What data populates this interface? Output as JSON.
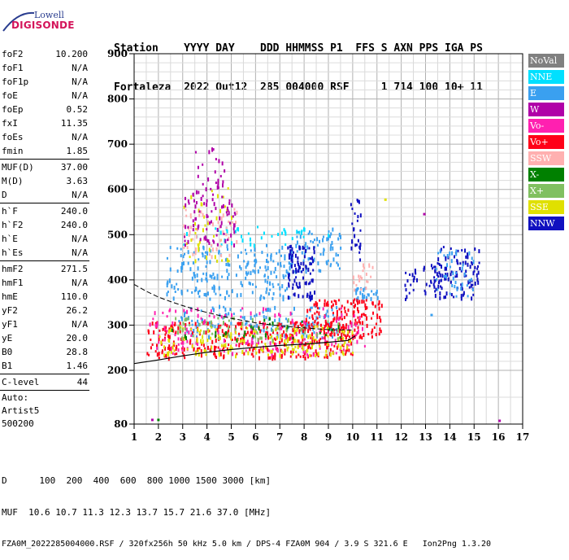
{
  "logo": {
    "line1": "Lowell",
    "line2": "DIGISONDE"
  },
  "header": {
    "row1": "Station    YYYY DAY    DDD HHMMSS P1  FFS S AXN PPS IGA PS",
    "row2": "Fortaleza  2022 Out12  285 004000 RSF     1 714 100 10+ 11"
  },
  "params": [
    {
      "name": "foF2",
      "value": "10.200"
    },
    {
      "name": "foF1",
      "value": "N/A"
    },
    {
      "name": "foF1p",
      "value": "N/A"
    },
    {
      "name": "foE",
      "value": "N/A"
    },
    {
      "name": "foEp",
      "value": "0.52"
    },
    {
      "name": "fxI",
      "value": "11.35"
    },
    {
      "name": "foEs",
      "value": "N/A"
    },
    {
      "name": "fmin",
      "value": "1.85"
    },
    {
      "sep": true
    },
    {
      "name": "MUF(D)",
      "value": "37.00"
    },
    {
      "name": "M(D)",
      "value": "3.63"
    },
    {
      "name": "D",
      "value": "N/A"
    },
    {
      "sep": true
    },
    {
      "name": "h`F",
      "value": "240.0"
    },
    {
      "name": "h`F2",
      "value": "240.0"
    },
    {
      "name": "h`E",
      "value": "N/A"
    },
    {
      "name": "h`Es",
      "value": "N/A"
    },
    {
      "sep": true
    },
    {
      "name": "hmF2",
      "value": "271.5"
    },
    {
      "name": "hmF1",
      "value": "N/A"
    },
    {
      "name": "hmE",
      "value": "110.0"
    },
    {
      "name": "yF2",
      "value": "26.2"
    },
    {
      "name": "yF1",
      "value": "N/A"
    },
    {
      "name": "yE",
      "value": "20.0"
    },
    {
      "name": "B0",
      "value": "28.8"
    },
    {
      "name": "B1",
      "value": "1.46"
    },
    {
      "sep": true
    },
    {
      "name": "C-level",
      "value": "44"
    },
    {
      "sep": true
    },
    {
      "text": "Auto:"
    },
    {
      "text": "Artist5"
    },
    {
      "text": "500200"
    }
  ],
  "legend": [
    {
      "label": "NoVal",
      "color": "#808080"
    },
    {
      "label": "NNE",
      "color": "#00e0ff"
    },
    {
      "label": "E",
      "color": "#3aa0f0"
    },
    {
      "label": "W",
      "color": "#b000a8"
    },
    {
      "label": "Vo-",
      "color": "#ff20b0"
    },
    {
      "label": "Vo+",
      "color": "#ff0018"
    },
    {
      "label": "SSW",
      "color": "#ffb0b0"
    },
    {
      "label": "X-",
      "color": "#008000"
    },
    {
      "label": "X+",
      "color": "#80c060"
    },
    {
      "label": "SSE",
      "color": "#e0e000"
    },
    {
      "label": "NNW",
      "color": "#1010c0"
    }
  ],
  "footer": {
    "line1": "D      100  200  400  600  800 1000 1500 3000 [km]",
    "line2": "MUF  10.6 10.7 11.3 12.3 13.7 15.7 21.6 37.0 [MHz]",
    "line3": "FZA0M_2022285004000.RSF / 320fx256h 50 kHz 5.0 km / DPS-4 FZA0M 904 / 3.9 S 321.6 E   Ion2Png 1.3.20"
  },
  "chart_data": {
    "type": "scatter",
    "xlim": [
      1,
      17
    ],
    "ylim": [
      80,
      900
    ],
    "xticks": [
      "1",
      "2",
      "3",
      "4",
      "5",
      "6",
      "7",
      "8",
      "9",
      "10",
      "11",
      "12",
      "13",
      "14",
      "15",
      "16",
      "17"
    ],
    "yticks": [
      "80",
      "200",
      "300",
      "400",
      "500",
      "600",
      "700",
      "800",
      "900"
    ],
    "grid": true,
    "trace_upper": [
      [
        1,
        390
      ],
      [
        1.5,
        375
      ],
      [
        2,
        362
      ],
      [
        2.5,
        352
      ],
      [
        3,
        343
      ],
      [
        3.5,
        335
      ],
      [
        4,
        328
      ],
      [
        5,
        315
      ],
      [
        6,
        305
      ],
      [
        7,
        298
      ],
      [
        8,
        294
      ],
      [
        9,
        290
      ],
      [
        10,
        289
      ]
    ],
    "trace_lower": [
      [
        1,
        215
      ],
      [
        2,
        223
      ],
      [
        3,
        232
      ],
      [
        4,
        240
      ],
      [
        5,
        246
      ],
      [
        6,
        251
      ],
      [
        7,
        255
      ],
      [
        8,
        258
      ],
      [
        9,
        262
      ],
      [
        9.8,
        266
      ],
      [
        10.1,
        276
      ]
    ],
    "clusters": [
      {
        "color": "#3aa0f0",
        "x": [
          2.3,
          7.5
        ],
        "y": [
          360,
          480
        ],
        "n": 220
      },
      {
        "color": "#3aa0f0",
        "x": [
          7.6,
          9.6
        ],
        "y": [
          420,
          520
        ],
        "n": 70
      },
      {
        "color": "#3aa0f0",
        "x": [
          2.8,
          9.5
        ],
        "y": [
          275,
          345
        ],
        "n": 140
      },
      {
        "color": "#3aa0f0",
        "x": [
          10.0,
          11.0
        ],
        "y": [
          360,
          385
        ],
        "n": 25
      },
      {
        "color": "#00e0ff",
        "x": [
          3.0,
          9.0
        ],
        "y": [
          480,
          520
        ],
        "n": 40
      },
      {
        "color": "#ff0018",
        "x": [
          1.5,
          10.0
        ],
        "y": [
          230,
          310
        ],
        "n": 360
      },
      {
        "color": "#ff0018",
        "x": [
          8.0,
          11.2
        ],
        "y": [
          275,
          360
        ],
        "n": 150
      },
      {
        "color": "#ff20b0",
        "x": [
          1.6,
          10.5
        ],
        "y": [
          235,
          340
        ],
        "n": 160
      },
      {
        "color": "#e0e000",
        "x": [
          2.0,
          10.0
        ],
        "y": [
          235,
          300
        ],
        "n": 170
      },
      {
        "color": "#e0e000",
        "x": [
          3.0,
          5.0
        ],
        "y": [
          440,
          620
        ],
        "n": 40
      },
      {
        "color": "#ffb0b0",
        "x": [
          3.0,
          5.2
        ],
        "y": [
          450,
          560
        ],
        "n": 50
      },
      {
        "color": "#ffb0b0",
        "x": [
          10.0,
          11.0
        ],
        "y": [
          380,
          440
        ],
        "n": 20
      },
      {
        "color": "#b000a8",
        "x": [
          3.0,
          5.2
        ],
        "y": [
          480,
          600
        ],
        "n": 80
      },
      {
        "color": "#b000a8",
        "x": [
          3.5,
          4.7
        ],
        "y": [
          600,
          700
        ],
        "n": 25
      },
      {
        "color": "#1010c0",
        "x": [
          7.3,
          8.4
        ],
        "y": [
          360,
          480
        ],
        "n": 90
      },
      {
        "color": "#1010c0",
        "x": [
          13.3,
          15.2
        ],
        "y": [
          360,
          480
        ],
        "n": 110
      },
      {
        "color": "#1010c0",
        "x": [
          12.1,
          13.4
        ],
        "y": [
          360,
          440
        ],
        "n": 30
      },
      {
        "color": "#1010c0",
        "x": [
          9.9,
          10.3
        ],
        "y": [
          440,
          580
        ],
        "n": 25
      },
      {
        "color": "#80c060",
        "x": [
          2.5,
          9.5
        ],
        "y": [
          270,
          320
        ],
        "n": 60
      },
      {
        "color": "#008000",
        "x": [
          2.5,
          9.5
        ],
        "y": [
          270,
          320
        ],
        "n": 30
      },
      {
        "color": "#3aa0f0",
        "x": [
          13.3,
          15.0
        ],
        "y": [
          360,
          470
        ],
        "n": 40
      }
    ],
    "isolated_points": [
      {
        "x": 1.7,
        "y": 92,
        "color": "#b000a8"
      },
      {
        "x": 1.95,
        "y": 92,
        "color": "#008000"
      },
      {
        "x": 16.0,
        "y": 90,
        "color": "#b000a8"
      },
      {
        "x": 13.2,
        "y": 325,
        "color": "#3aa0f0"
      },
      {
        "x": 12.9,
        "y": 548,
        "color": "#b000a8"
      },
      {
        "x": 11.3,
        "y": 580,
        "color": "#e0e000"
      }
    ]
  }
}
